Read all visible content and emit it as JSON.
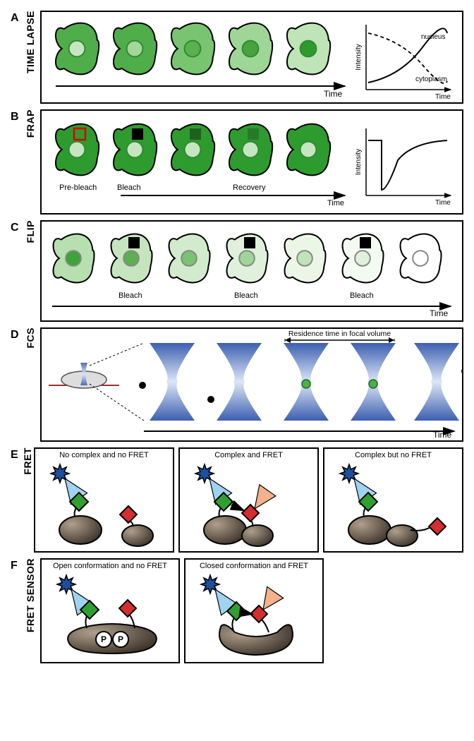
{
  "panels": {
    "A": {
      "letter": "A",
      "label": "TIME LAPSE",
      "cells": [
        {
          "body": "#4fae49",
          "nuc": "#c8e5c1",
          "nucStroke": "#2e8b33"
        },
        {
          "body": "#4fae49",
          "nuc": "#a5d69b",
          "nucStroke": "#2e8b33"
        },
        {
          "body": "#79c470",
          "nuc": "#5bb050",
          "nucStroke": "#2e8b33"
        },
        {
          "body": "#9fd697",
          "nuc": "#47a33d",
          "nucStroke": "#2e8b33"
        },
        {
          "body": "#bfe4b7",
          "nuc": "#2f9a2c",
          "nucStroke": "#2e8b33"
        }
      ],
      "chart": {
        "xlabel": "Time",
        "ylabel": "Intensity",
        "trace1": "nucleus",
        "trace2": "cytoplasm"
      },
      "timeArrow": "Time"
    },
    "B": {
      "letter": "B",
      "label": "FRAP",
      "cells": [
        {
          "body": "#2e9b2e",
          "nuc": "#c8e5c1",
          "box": "none",
          "boxStroke": "#d00"
        },
        {
          "body": "#2e9b2e",
          "nuc": "#c8e5c1",
          "box": "#000",
          "boxStroke": "none"
        },
        {
          "body": "#2e9b2e",
          "nuc": "#c8e5c1",
          "box": "#1e601e",
          "boxStroke": "none"
        },
        {
          "body": "#2e9b2e",
          "nuc": "#c8e5c1",
          "box": "#267b26",
          "boxStroke": "none"
        },
        {
          "body": "#2e9b2e",
          "nuc": "#c8e5c1",
          "box": "#2e9b2e",
          "boxStroke": "none"
        }
      ],
      "phaseLabels": [
        "Pre-bleach",
        "Bleach",
        "",
        "Recovery",
        ""
      ],
      "timeArrow": "Time",
      "chart": {
        "xlabel": "Time",
        "ylabel": "Intensity"
      }
    },
    "C": {
      "letter": "C",
      "label": "FLIP",
      "cells": [
        {
          "body": "#b7dfaf",
          "nuc": "#3ea338",
          "box": false
        },
        {
          "body": "#c6e5bf",
          "nuc": "#5bb050",
          "box": true
        },
        {
          "body": "#d3ebcd",
          "nuc": "#79c470",
          "box": false
        },
        {
          "body": "#dff1da",
          "nuc": "#9fd697",
          "box": true
        },
        {
          "body": "#ebf6e7",
          "nuc": "#bfe4b7",
          "box": false
        },
        {
          "body": "#f3faf1",
          "nuc": "#dff1da",
          "box": true
        },
        {
          "body": "#ffffff",
          "nuc": "#ffffff",
          "box": false
        }
      ],
      "bleachLabel": "Bleach",
      "timeArrow": "Time"
    },
    "D": {
      "letter": "D",
      "label": "FCS",
      "residenceLabel": "Residence time\nin focal volume",
      "timeArrow": "Time",
      "dotColorOut": "#000000",
      "dotColorIn": "#4fae49"
    },
    "E": {
      "letter": "E",
      "label": "FRET",
      "boxes": [
        {
          "title": "No complex and no FRET",
          "complex": false,
          "fret": false
        },
        {
          "title": "Complex and FRET",
          "complex": true,
          "fret": true
        },
        {
          "title": "Complex but no FRET",
          "complex": true,
          "fret": false
        }
      ]
    },
    "F": {
      "letter": "F",
      "label": "FRET SENSOR",
      "boxes": [
        {
          "title": "Open conformation and no FRET",
          "closed": false
        },
        {
          "title": "Closed conformation and FRET",
          "closed": true
        }
      ]
    }
  },
  "colors": {
    "cellStroke": "#000000",
    "starBlue": "#1c4f9c",
    "coneBlue": "#9fd3f0",
    "coneOrange": "#f5b08c",
    "fretGreen": "#2fa02f",
    "fretRed": "#d62e2e",
    "proteinDark": "#4a3f35",
    "proteinLight": "#8a7a68",
    "phospho": "#ffffff",
    "focalBlue1": "#6a8edc",
    "focalBlue2": "#dbe6f7"
  }
}
